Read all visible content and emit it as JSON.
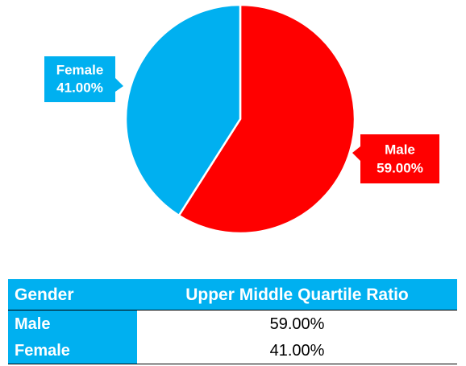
{
  "chart_data": {
    "type": "pie",
    "categories": [
      "Male",
      "Female"
    ],
    "values": [
      59,
      41
    ],
    "value_labels": [
      "59.00%",
      "41.00%"
    ],
    "colors": [
      "#ff0000",
      "#00b0f0"
    ]
  },
  "table": {
    "header": [
      "Gender",
      "Upper Middle Quartile Ratio"
    ],
    "rows": [
      [
        "Male",
        "59.00%"
      ],
      [
        "Female",
        "41.00%"
      ]
    ]
  }
}
